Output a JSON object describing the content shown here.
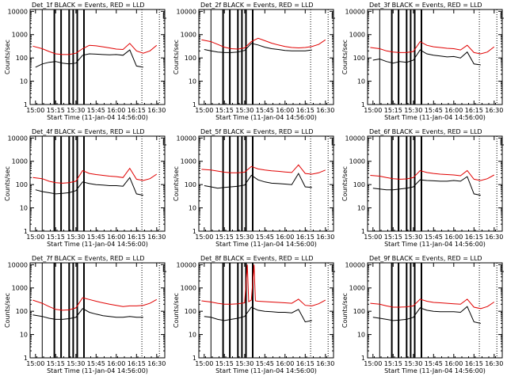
{
  "chart_data": [
    {
      "type": "line",
      "title": "Det_1f BLACK = Events, RED = LLD",
      "xlabel": "Start Time (11-Jan-04 14:56:00)",
      "ylabel": "Counts/sec",
      "x_ticks": [
        "15:00",
        "15:15",
        "15:30",
        "15:45",
        "16:00",
        "16:15",
        "16:30"
      ],
      "y_ticks": [
        "1",
        "10",
        "100",
        "1000",
        "10000"
      ],
      "ylim": [
        1,
        12000
      ],
      "yscale": "log",
      "grid": false,
      "series": [
        {
          "name": "Events",
          "color": "#000000",
          "x": [
            "15:00",
            "15:05",
            "15:10",
            "15:15",
            "15:20",
            "15:25",
            "15:30",
            "15:35",
            "15:40",
            "15:45",
            "15:50",
            "15:55",
            "16:00",
            "16:05",
            "16:10",
            "16:15",
            "16:20"
          ],
          "y": [
            40,
            55,
            65,
            70,
            60,
            55,
            60,
            130,
            150,
            145,
            140,
            135,
            140,
            130,
            220,
            45,
            40
          ]
        },
        {
          "name": "LLD",
          "color": "#e00000",
          "x": [
            "14:58",
            "15:05",
            "15:10",
            "15:15",
            "15:20",
            "15:25",
            "15:30",
            "15:35",
            "15:40",
            "15:45",
            "15:50",
            "15:55",
            "16:00",
            "16:05",
            "16:10",
            "16:15",
            "16:20",
            "16:25",
            "16:30"
          ],
          "y": [
            320,
            250,
            190,
            150,
            140,
            140,
            160,
            250,
            350,
            330,
            300,
            270,
            240,
            230,
            420,
            200,
            160,
            200,
            350
          ]
        }
      ]
    },
    {
      "type": "line",
      "title": "Det_2f BLACK = Events, RED = LLD",
      "xlabel": "Start Time (11-Jan-04 14:56:00)",
      "ylabel": "Counts/sec",
      "x_ticks": [
        "15:00",
        "15:15",
        "15:30",
        "15:45",
        "16:00",
        "16:15",
        "16:30"
      ],
      "y_ticks": [
        "1",
        "10",
        "100",
        "1000",
        "10000"
      ],
      "ylim": [
        1,
        12000
      ],
      "yscale": "log",
      "grid": false,
      "series": [
        {
          "name": "Events",
          "color": "#000000",
          "x": [
            "15:00",
            "15:05",
            "15:10",
            "15:15",
            "15:20",
            "15:25",
            "15:30",
            "15:35",
            "15:40",
            "15:45",
            "15:50",
            "15:55",
            "16:00",
            "16:05",
            "16:10",
            "16:15",
            "16:20"
          ],
          "y": [
            230,
            200,
            180,
            170,
            170,
            180,
            210,
            420,
            360,
            290,
            250,
            230,
            210,
            200,
            200,
            200,
            220
          ]
        },
        {
          "name": "LLD",
          "color": "#e00000",
          "x": [
            "14:58",
            "15:05",
            "15:10",
            "15:15",
            "15:20",
            "15:25",
            "15:30",
            "15:35",
            "15:40",
            "15:45",
            "15:50",
            "15:55",
            "16:00",
            "16:05",
            "16:10",
            "16:15",
            "16:20",
            "16:25",
            "16:30"
          ],
          "y": [
            600,
            500,
            380,
            290,
            250,
            240,
            270,
            500,
            700,
            550,
            430,
            360,
            310,
            280,
            270,
            280,
            310,
            380,
            600
          ]
        }
      ]
    },
    {
      "type": "line",
      "title": "Det_3f BLACK = Events, RED = LLD",
      "xlabel": "Start Time (11-Jan-04 14:56:00)",
      "ylabel": "Counts/sec",
      "x_ticks": [
        "15:00",
        "15:15",
        "15:30",
        "15:45",
        "16:00",
        "16:15",
        "16:30"
      ],
      "y_ticks": [
        "1",
        "10",
        "100",
        "1000",
        "10000"
      ],
      "ylim": [
        1,
        12000
      ],
      "yscale": "log",
      "grid": false,
      "series": [
        {
          "name": "Events",
          "color": "#000000",
          "x": [
            "15:00",
            "15:05",
            "15:10",
            "15:15",
            "15:20",
            "15:25",
            "15:30",
            "15:35",
            "15:40",
            "15:45",
            "15:50",
            "15:55",
            "16:00",
            "16:05",
            "16:10",
            "16:15",
            "16:20"
          ],
          "y": [
            80,
            90,
            70,
            60,
            70,
            65,
            80,
            220,
            150,
            130,
            120,
            110,
            115,
            100,
            180,
            55,
            50
          ]
        },
        {
          "name": "LLD",
          "color": "#e00000",
          "x": [
            "14:58",
            "15:05",
            "15:10",
            "15:15",
            "15:20",
            "15:25",
            "15:30",
            "15:35",
            "15:40",
            "15:45",
            "15:50",
            "15:55",
            "16:00",
            "16:05",
            "16:10",
            "16:15",
            "16:20",
            "16:25",
            "16:30"
          ],
          "y": [
            280,
            250,
            200,
            180,
            170,
            170,
            190,
            500,
            350,
            300,
            280,
            260,
            250,
            220,
            350,
            170,
            150,
            180,
            300
          ]
        }
      ]
    },
    {
      "type": "line",
      "title": "Det_4f BLACK = Events, RED = LLD",
      "xlabel": "Start Time (11-Jan-04 14:56:00)",
      "ylabel": "Counts/sec",
      "x_ticks": [
        "15:00",
        "15:15",
        "15:30",
        "15:45",
        "16:00",
        "16:15",
        "16:30"
      ],
      "y_ticks": [
        "1",
        "10",
        "100",
        "1000",
        "10000"
      ],
      "ylim": [
        1,
        12000
      ],
      "yscale": "log",
      "grid": false,
      "series": [
        {
          "name": "Events",
          "color": "#000000",
          "x": [
            "15:00",
            "15:05",
            "15:10",
            "15:15",
            "15:20",
            "15:25",
            "15:30",
            "15:35",
            "15:40",
            "15:45",
            "15:50",
            "15:55",
            "16:00",
            "16:05",
            "16:10",
            "16:15",
            "16:20"
          ],
          "y": [
            60,
            50,
            45,
            40,
            42,
            45,
            55,
            130,
            110,
            100,
            95,
            90,
            90,
            85,
            200,
            40,
            35
          ]
        },
        {
          "name": "LLD",
          "color": "#e00000",
          "x": [
            "14:58",
            "15:05",
            "15:10",
            "15:15",
            "15:20",
            "15:25",
            "15:30",
            "15:35",
            "15:40",
            "15:45",
            "15:50",
            "15:55",
            "16:00",
            "16:05",
            "16:10",
            "16:15",
            "16:20",
            "16:25",
            "16:30"
          ],
          "y": [
            200,
            180,
            140,
            120,
            115,
            120,
            140,
            400,
            300,
            270,
            250,
            230,
            220,
            200,
            500,
            170,
            150,
            180,
            280
          ]
        }
      ]
    },
    {
      "type": "line",
      "title": "Det_5f BLACK = Events, RED = LLD",
      "xlabel": "Start Time (11-Jan-04 14:56:00)",
      "ylabel": "Counts/sec",
      "x_ticks": [
        "15:00",
        "15:15",
        "15:30",
        "15:45",
        "16:00",
        "16:15",
        "16:30"
      ],
      "y_ticks": [
        "1",
        "10",
        "100",
        "1000",
        "10000"
      ],
      "ylim": [
        1,
        12000
      ],
      "yscale": "log",
      "grid": false,
      "series": [
        {
          "name": "Events",
          "color": "#000000",
          "x": [
            "15:00",
            "15:05",
            "15:10",
            "15:15",
            "15:20",
            "15:25",
            "15:30",
            "15:35",
            "15:40",
            "15:45",
            "15:50",
            "15:55",
            "16:00",
            "16:05",
            "16:10",
            "16:15",
            "16:20"
          ],
          "y": [
            90,
            80,
            70,
            75,
            80,
            85,
            95,
            250,
            160,
            130,
            115,
            110,
            105,
            100,
            300,
            80,
            75
          ]
        },
        {
          "name": "LLD",
          "color": "#e00000",
          "x": [
            "14:58",
            "15:05",
            "15:10",
            "15:15",
            "15:20",
            "15:25",
            "15:30",
            "15:35",
            "15:40",
            "15:45",
            "15:50",
            "15:55",
            "16:00",
            "16:05",
            "16:10",
            "16:15",
            "16:20",
            "16:25",
            "16:30"
          ],
          "y": [
            450,
            420,
            380,
            340,
            320,
            320,
            340,
            600,
            470,
            420,
            390,
            370,
            350,
            330,
            700,
            300,
            280,
            320,
            420
          ]
        }
      ]
    },
    {
      "type": "line",
      "title": "Det_6f BLACK = Events, RED = LLD",
      "xlabel": "Start Time (11-Jan-04 14:56:00)",
      "ylabel": "Counts/sec",
      "x_ticks": [
        "15:00",
        "15:15",
        "15:30",
        "15:45",
        "16:00",
        "16:15",
        "16:30"
      ],
      "y_ticks": [
        "1",
        "10",
        "100",
        "1000",
        "10000"
      ],
      "ylim": [
        1,
        12000
      ],
      "yscale": "log",
      "grid": false,
      "series": [
        {
          "name": "Events",
          "color": "#000000",
          "x": [
            "15:00",
            "15:05",
            "15:10",
            "15:15",
            "15:20",
            "15:25",
            "15:30",
            "15:35",
            "15:40",
            "15:45",
            "15:50",
            "15:55",
            "16:00",
            "16:05",
            "16:10",
            "16:15",
            "16:20"
          ],
          "y": [
            70,
            65,
            60,
            60,
            65,
            70,
            80,
            160,
            150,
            145,
            140,
            140,
            150,
            140,
            220,
            40,
            35
          ]
        },
        {
          "name": "LLD",
          "color": "#e00000",
          "x": [
            "14:58",
            "15:05",
            "15:10",
            "15:15",
            "15:20",
            "15:25",
            "15:30",
            "15:35",
            "15:40",
            "15:45",
            "15:50",
            "15:55",
            "16:00",
            "16:05",
            "16:10",
            "16:15",
            "16:20",
            "16:25",
            "16:30"
          ],
          "y": [
            250,
            230,
            200,
            180,
            170,
            175,
            200,
            400,
            330,
            300,
            280,
            270,
            260,
            240,
            400,
            170,
            150,
            180,
            260
          ]
        }
      ]
    },
    {
      "type": "line",
      "title": "Det_7f BLACK = Events, RED = LLD",
      "xlabel": "Start Time (11-Jan-04 14:56:00)",
      "ylabel": "Counts/sec",
      "x_ticks": [
        "15:00",
        "15:15",
        "15:30",
        "15:45",
        "16:00",
        "16:15",
        "16:30"
      ],
      "y_ticks": [
        "1",
        "10",
        "100",
        "1000",
        "10000"
      ],
      "ylim": [
        1,
        12000
      ],
      "yscale": "log",
      "grid": false,
      "series": [
        {
          "name": "Events",
          "color": "#000000",
          "x": [
            "14:58",
            "15:05",
            "15:10",
            "15:15",
            "15:20",
            "15:25",
            "15:30",
            "15:35",
            "15:40",
            "15:45",
            "15:50",
            "15:55",
            "16:00",
            "16:05",
            "16:10",
            "16:15",
            "16:20"
          ],
          "y": [
            70,
            60,
            50,
            45,
            45,
            48,
            55,
            130,
            90,
            75,
            65,
            60,
            55,
            55,
            60,
            55,
            55
          ]
        },
        {
          "name": "LLD",
          "color": "#e00000",
          "x": [
            "14:58",
            "15:05",
            "15:10",
            "15:15",
            "15:20",
            "15:25",
            "15:30",
            "15:35",
            "15:40",
            "15:45",
            "15:50",
            "15:55",
            "16:00",
            "16:05",
            "16:10",
            "16:15",
            "16:20",
            "16:25",
            "16:30"
          ],
          "y": [
            300,
            220,
            160,
            120,
            110,
            115,
            140,
            380,
            320,
            270,
            230,
            200,
            180,
            160,
            170,
            170,
            180,
            220,
            320
          ]
        }
      ]
    },
    {
      "type": "line",
      "title": "Det_8f BLACK = Events, RED = LLD",
      "xlabel": "Start Time (11-Jan-04 14:56:00)",
      "ylabel": "Counts/sec",
      "x_ticks": [
        "15:00",
        "15:15",
        "15:30",
        "15:45",
        "16:00",
        "16:15",
        "16:30"
      ],
      "y_ticks": [
        "1",
        "10",
        "100",
        "1000",
        "10000"
      ],
      "ylim": [
        1,
        12000
      ],
      "yscale": "log",
      "grid": false,
      "series": [
        {
          "name": "Events",
          "color": "#000000",
          "x": [
            "15:00",
            "15:05",
            "15:10",
            "15:15",
            "15:20",
            "15:25",
            "15:30",
            "15:35",
            "15:40",
            "15:45",
            "15:50",
            "15:55",
            "16:00",
            "16:05",
            "16:10",
            "16:15",
            "16:20"
          ],
          "y": [
            60,
            55,
            45,
            40,
            45,
            50,
            60,
            150,
            110,
            100,
            95,
            90,
            90,
            85,
            120,
            35,
            40
          ]
        },
        {
          "name": "LLD",
          "color": "#e00000",
          "x": [
            "14:58",
            "15:05",
            "15:10",
            "15:15",
            "15:20",
            "15:25",
            "15:30",
            "15:32",
            "15:33",
            "15:35",
            "15:37",
            "15:38",
            "15:40",
            "15:45",
            "15:50",
            "15:55",
            "16:00",
            "16:05",
            "16:10",
            "16:15",
            "16:20",
            "16:25",
            "16:30"
          ],
          "y": [
            280,
            250,
            220,
            200,
            200,
            210,
            230,
            10000,
            260,
            300,
            10000,
            280,
            270,
            260,
            250,
            240,
            230,
            220,
            330,
            180,
            170,
            210,
            300
          ]
        }
      ]
    },
    {
      "type": "line",
      "title": "Det_9f BLACK = Events, RED = LLD",
      "xlabel": "Start Time (11-Jan-04 14:56:00)",
      "ylabel": "Counts/sec",
      "x_ticks": [
        "15:00",
        "15:15",
        "15:30",
        "15:45",
        "16:00",
        "16:15",
        "16:30"
      ],
      "y_ticks": [
        "1",
        "10",
        "100",
        "1000",
        "10000"
      ],
      "ylim": [
        1,
        12000
      ],
      "yscale": "log",
      "grid": false,
      "series": [
        {
          "name": "Events",
          "color": "#000000",
          "x": [
            "15:00",
            "15:05",
            "15:10",
            "15:15",
            "15:20",
            "15:25",
            "15:30",
            "15:35",
            "15:40",
            "15:45",
            "15:50",
            "15:55",
            "16:00",
            "16:05",
            "16:10",
            "16:15",
            "16:20"
          ],
          "y": [
            55,
            50,
            45,
            40,
            42,
            45,
            55,
            140,
            110,
            100,
            95,
            95,
            95,
            90,
            160,
            35,
            30
          ]
        },
        {
          "name": "LLD",
          "color": "#e00000",
          "x": [
            "14:58",
            "15:05",
            "15:10",
            "15:15",
            "15:20",
            "15:25",
            "15:30",
            "15:35",
            "15:40",
            "15:45",
            "15:50",
            "15:55",
            "16:00",
            "16:05",
            "16:10",
            "16:15",
            "16:20",
            "16:25",
            "16:30"
          ],
          "y": [
            220,
            200,
            170,
            150,
            150,
            155,
            170,
            330,
            270,
            240,
            230,
            220,
            210,
            200,
            330,
            150,
            130,
            160,
            250
          ]
        }
      ]
    }
  ]
}
